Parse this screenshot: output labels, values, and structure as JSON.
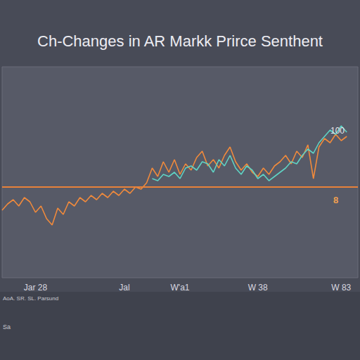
{
  "chart_data": {
    "type": "line",
    "title": "Ch-Changes in AR Markk Prirce Senthent",
    "categories": [
      null,
      null,
      null,
      null,
      null,
      null,
      "Jar 28",
      null,
      null,
      null,
      null,
      null,
      null,
      null,
      null,
      null,
      null,
      null,
      null,
      null,
      null,
      null,
      "Jal",
      null,
      null,
      null,
      null,
      null,
      null,
      null,
      null,
      null,
      "W'a1",
      null,
      null,
      null,
      null,
      null,
      null,
      null,
      null,
      null,
      null,
      null,
      null,
      null,
      "W 38",
      null,
      null,
      null,
      null,
      null,
      null,
      null,
      null,
      null,
      null,
      null,
      null,
      null,
      null,
      "W 83",
      null,
      null,
      null
    ],
    "series": [
      {
        "color": "#f08a3c",
        "values": [
          32,
          35,
          37,
          34,
          38,
          36,
          31,
          34,
          28,
          25,
          33,
          30,
          36,
          34,
          38,
          36,
          39,
          37,
          40,
          38,
          41,
          39,
          42,
          40,
          43,
          42,
          45,
          52,
          48,
          55,
          50,
          56,
          49,
          54,
          51,
          57,
          60,
          53,
          56,
          52,
          58,
          62,
          55,
          51,
          54,
          50,
          48,
          52,
          49,
          53,
          55,
          58,
          54,
          60,
          57,
          63,
          47,
          62,
          66,
          64,
          68,
          65,
          67,
          null,
          null
        ]
      },
      {
        "color": "#5fd3c4",
        "values": [
          null,
          null,
          null,
          null,
          null,
          null,
          null,
          null,
          null,
          null,
          null,
          null,
          null,
          null,
          null,
          null,
          null,
          null,
          null,
          null,
          null,
          null,
          null,
          null,
          null,
          null,
          null,
          47,
          46,
          49,
          48,
          50,
          47,
          52,
          53,
          51,
          55,
          54,
          50,
          56,
          53,
          58,
          52,
          49,
          53,
          51,
          47,
          49,
          46,
          48,
          50,
          52,
          55,
          54,
          58,
          61,
          59,
          64,
          67,
          70,
          68,
          72,
          69,
          null,
          null
        ]
      }
    ],
    "reference_line": 43,
    "annotations": [
      "100",
      "8",
      "AoA. SR. SL. Parsund",
      "Sa"
    ],
    "ylim": [
      0,
      100
    ],
    "yticks": [],
    "tick_labels": "x",
    "grid": false
  }
}
